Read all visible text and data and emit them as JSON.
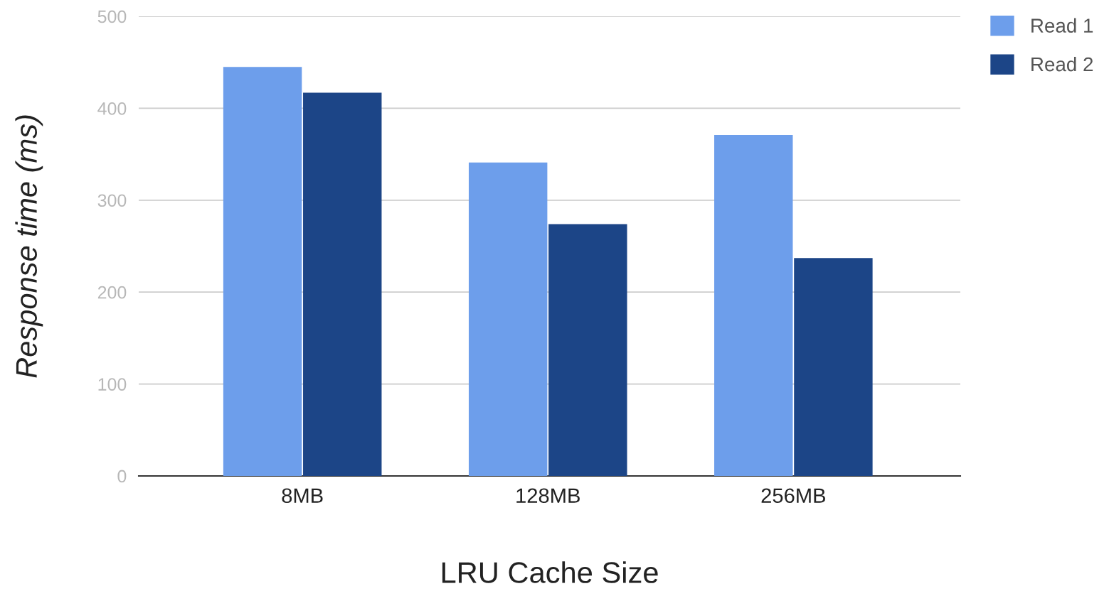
{
  "chart_data": {
    "type": "bar",
    "xlabel": "LRU Cache Size",
    "ylabel": "Response time (ms)",
    "categories": [
      "8MB",
      "128MB",
      "256MB"
    ],
    "series": [
      {
        "name": "Read 1",
        "color": "#6d9eeb",
        "values": [
          445,
          341,
          371
        ]
      },
      {
        "name": "Read 2",
        "color": "#1c4587",
        "values": [
          417,
          274,
          237
        ]
      }
    ],
    "ylim": [
      0,
      500
    ],
    "yticks": [
      0,
      100,
      200,
      300,
      400,
      500
    ],
    "grid": "y",
    "legend": "top right"
  }
}
